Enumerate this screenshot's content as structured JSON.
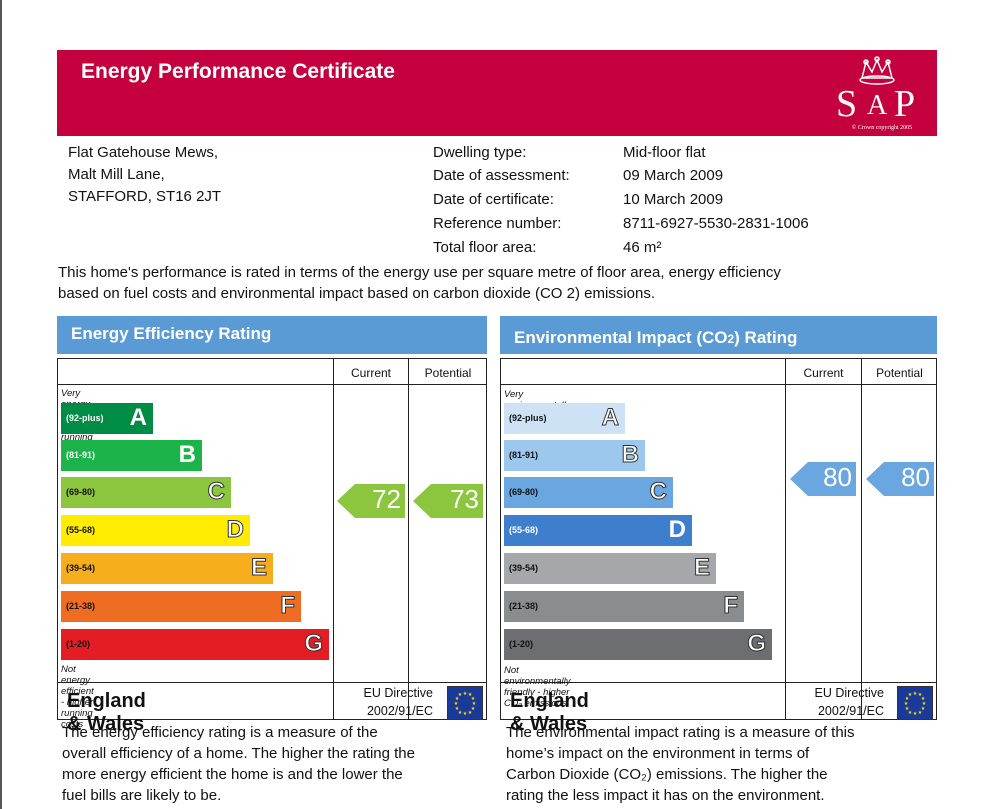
{
  "header": {
    "title": "Energy Performance Certificate",
    "logo_text_left": "S",
    "logo_text_a": "A",
    "logo_text_right": "P",
    "logo_caption": "© Crown copyright 2005"
  },
  "address": [
    "Flat   Gatehouse Mews,",
    "Malt Mill Lane,",
    "STAFFORD, ST16 2JT"
  ],
  "properties": [
    {
      "label": "Dwelling type:",
      "value": "Mid-floor flat"
    },
    {
      "label": "Date of assessment:",
      "value": "09 March 2009"
    },
    {
      "label": "Date of certificate:",
      "value": "10 March 2009"
    },
    {
      "label": "Reference number:",
      "value": "8711-6927-5530-2831-1006"
    },
    {
      "label": "Total floor area:",
      "value": "46 m²"
    }
  ],
  "intro": "This home's performance is rated in terms of the energy use per square metre of floor area, energy efficiency based on fuel costs and environmental impact based on carbon dioxide (CO 2) emissions.",
  "energy": {
    "title": "Energy Efficiency Rating",
    "col_current": "Current",
    "col_potential": "Potential",
    "top_note": "Very energy efficient - lower running costs",
    "bottom_note": "Not energy efficient - higher running costs",
    "bands": [
      {
        "range": "(92-plus)",
        "letter": "A",
        "color": "#008c44"
      },
      {
        "range": "(81-91)",
        "letter": "B",
        "color": "#1bb34a"
      },
      {
        "range": "(69-80)",
        "letter": "C",
        "color": "#8cc63f"
      },
      {
        "range": "(55-68)",
        "letter": "D",
        "color": "#ffec00"
      },
      {
        "range": "(39-54)",
        "letter": "E",
        "color": "#f7ae1d"
      },
      {
        "range": "(21-38)",
        "letter": "F",
        "color": "#ef6c23"
      },
      {
        "range": "(1-20)",
        "letter": "G",
        "color": "#e31d23"
      }
    ],
    "current": "72",
    "potential": "73",
    "arrow_color": "#8cc63f",
    "region": "England & Wales",
    "directive_line1": "EU Directive",
    "directive_line2": "2002/91/EC",
    "description": [
      "The energy efficiency rating is a measure of the",
      "overall efficiency of a home. The higher the rating the",
      "more energy efficient the home is and the lower the",
      "fuel bills are likely to be."
    ]
  },
  "environment": {
    "title_pre": "Environmental Impact (CO",
    "title_sub": "2",
    "title_post": ") Rating",
    "col_current": "Current",
    "col_potential": "Potential",
    "top_note": "Very environmentally friendly - lower CO₂ emissions",
    "bottom_note": "Not environmentally friendly - higher CO₂ emissions",
    "bands": [
      {
        "range": "(92-plus)",
        "letter": "A",
        "color": "#cde3f5"
      },
      {
        "range": "(81-91)",
        "letter": "B",
        "color": "#9cc8ee"
      },
      {
        "range": "(69-80)",
        "letter": "C",
        "color": "#6aa6df"
      },
      {
        "range": "(55-68)",
        "letter": "D",
        "color": "#3d7fcc"
      },
      {
        "range": "(39-54)",
        "letter": "E",
        "color": "#a5a7aa"
      },
      {
        "range": "(21-38)",
        "letter": "F",
        "color": "#8a8c8e"
      },
      {
        "range": "(1-20)",
        "letter": "G",
        "color": "#6d6e71"
      }
    ],
    "current": "80",
    "potential": "80",
    "arrow_color": "#6aa6df",
    "region": "England & Wales",
    "directive_line1": "EU Directive",
    "directive_line2": "2002/91/EC",
    "description": [
      "The environmental impact rating is a measure of this",
      "home’s impact on the environment in terms of",
      "Carbon Dioxide (CO₂) emissions. The higher the",
      "rating the less impact it has on the environment."
    ]
  }
}
